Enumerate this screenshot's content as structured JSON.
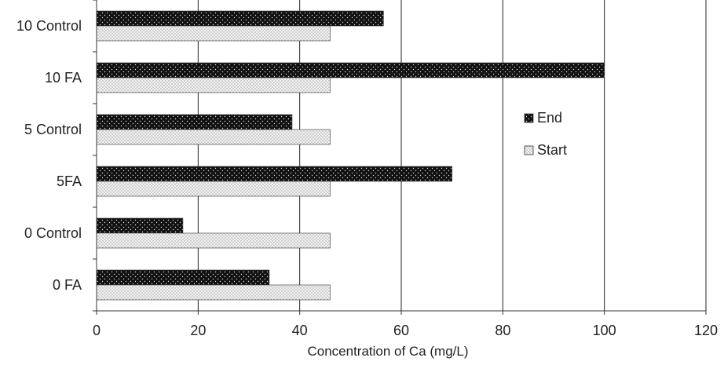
{
  "chart_data": {
    "type": "bar",
    "orientation": "horizontal",
    "title": "",
    "xlabel": "Concentration of Ca (mg/L)",
    "ylabel": "",
    "xlim": [
      0,
      120
    ],
    "xticks": [
      0,
      20,
      40,
      60,
      80,
      100,
      120
    ],
    "grid": "vertical major gridlines",
    "legend_position": "right",
    "categories": [
      "0 FA",
      "0 Control",
      "5FA",
      "5 Control",
      "10 FA",
      "10 Control"
    ],
    "series": [
      {
        "name": "End",
        "values": [
          34,
          17,
          70,
          38.5,
          100,
          56.5
        ],
        "pattern": "black-dotted",
        "color": "#111111"
      },
      {
        "name": "Start",
        "values": [
          46,
          46,
          46,
          46,
          46,
          46
        ],
        "pattern": "light-stipple",
        "color": "#e6e6e6"
      }
    ]
  }
}
